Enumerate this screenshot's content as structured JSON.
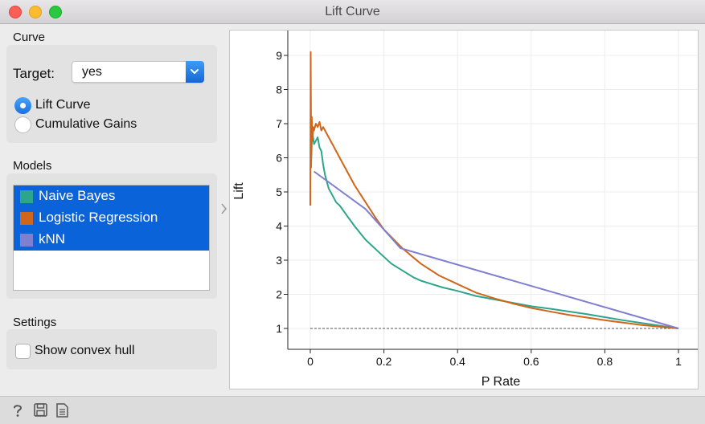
{
  "window": {
    "title": "Lift Curve"
  },
  "curve_group": {
    "title": "Curve",
    "target_label": "Target:",
    "target_value": "yes",
    "options": [
      {
        "label": "Lift Curve",
        "selected": true
      },
      {
        "label": "Cumulative Gains",
        "selected": false
      }
    ]
  },
  "models_group": {
    "title": "Models",
    "items": [
      {
        "label": "Naive Bayes",
        "color": "#2ca58d",
        "selected": true
      },
      {
        "label": "Logistic Regression",
        "color": "#d0661a",
        "selected": true
      },
      {
        "label": "kNN",
        "color": "#7f7fcf",
        "selected": true
      }
    ]
  },
  "settings_group": {
    "title": "Settings",
    "show_convex_hull_label": "Show convex hull",
    "show_convex_hull": false
  },
  "statusbar": {
    "icons": [
      "help-icon",
      "save-icon",
      "report-icon"
    ]
  },
  "chart_data": {
    "type": "line",
    "title": "",
    "xlabel": "P Rate",
    "ylabel": "Lift",
    "xlim": [
      0,
      1
    ],
    "ylim": [
      0.7,
      9.6
    ],
    "xticks": [
      "0",
      "0.2",
      "0.4",
      "0.6",
      "0.8",
      "1"
    ],
    "yticks": [
      "1",
      "2",
      "3",
      "4",
      "5",
      "6",
      "7",
      "8",
      "9"
    ],
    "grid": true,
    "baseline": {
      "y": 1,
      "style": "dashed"
    },
    "series": [
      {
        "name": "Naive Bayes",
        "color": "#2ca58d",
        "x": [
          0.002,
          0.005,
          0.01,
          0.015,
          0.02,
          0.025,
          0.03,
          0.035,
          0.04,
          0.05,
          0.06,
          0.07,
          0.08,
          0.1,
          0.12,
          0.15,
          0.18,
          0.2,
          0.22,
          0.25,
          0.28,
          0.3,
          0.33,
          0.36,
          0.4,
          0.45,
          0.5,
          0.55,
          0.6,
          0.65,
          0.7,
          0.75,
          0.8,
          0.85,
          0.9,
          0.95,
          1.0
        ],
        "y": [
          5.7,
          6.8,
          6.4,
          6.5,
          6.6,
          6.3,
          6.2,
          5.8,
          5.5,
          5.1,
          4.9,
          4.7,
          4.6,
          4.3,
          4.0,
          3.6,
          3.3,
          3.1,
          2.9,
          2.7,
          2.5,
          2.4,
          2.3,
          2.2,
          2.1,
          1.95,
          1.85,
          1.75,
          1.65,
          1.58,
          1.5,
          1.42,
          1.33,
          1.24,
          1.16,
          1.08,
          1.0
        ]
      },
      {
        "name": "Logistic Regression",
        "color": "#d0661a",
        "x": [
          0.0,
          0.001,
          0.002,
          0.003,
          0.004,
          0.006,
          0.008,
          0.01,
          0.015,
          0.02,
          0.025,
          0.03,
          0.035,
          0.04,
          0.05,
          0.06,
          0.08,
          0.1,
          0.12,
          0.15,
          0.18,
          0.2,
          0.25,
          0.3,
          0.35,
          0.4,
          0.45,
          0.5,
          0.55,
          0.6,
          0.65,
          0.7,
          0.75,
          0.8,
          0.85,
          0.9,
          0.95,
          1.0
        ],
        "y": [
          4.6,
          9.1,
          7.0,
          6.1,
          7.2,
          6.5,
          6.9,
          6.8,
          7.0,
          6.9,
          7.05,
          6.8,
          6.9,
          6.8,
          6.6,
          6.4,
          6.0,
          5.6,
          5.2,
          4.7,
          4.2,
          3.9,
          3.35,
          2.9,
          2.55,
          2.3,
          2.05,
          1.88,
          1.73,
          1.6,
          1.5,
          1.4,
          1.32,
          1.24,
          1.17,
          1.1,
          1.05,
          1.0
        ]
      },
      {
        "name": "kNN",
        "color": "#7f7fcf",
        "x": [
          0.01,
          0.15,
          0.245,
          1.0
        ],
        "y": [
          5.6,
          4.5,
          3.35,
          1.0
        ]
      }
    ]
  }
}
